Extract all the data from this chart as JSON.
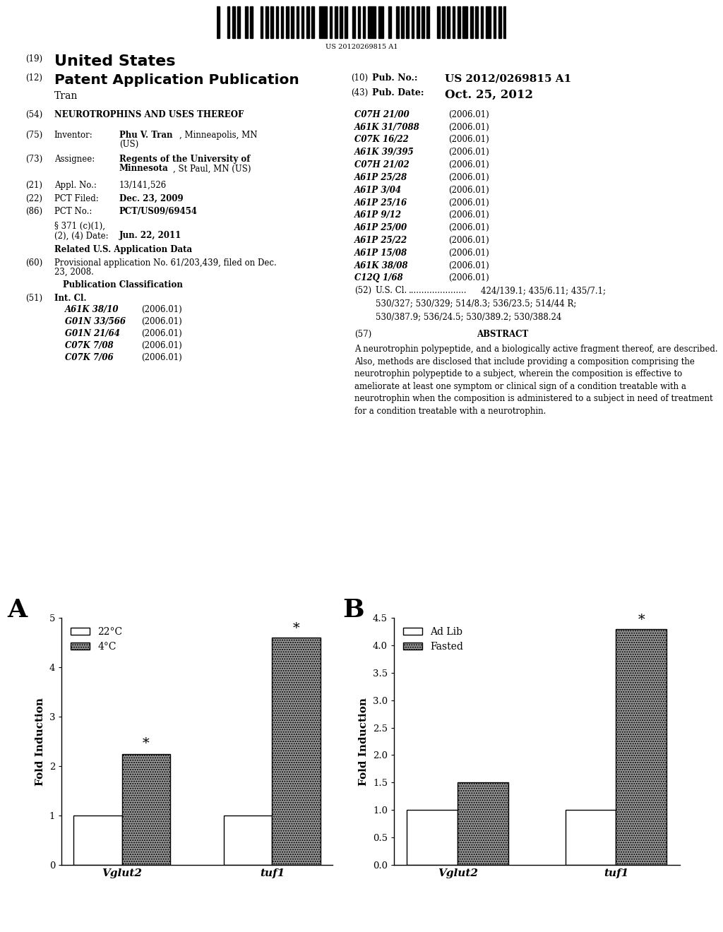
{
  "chart_A": {
    "title_label": "A",
    "categories": [
      "Vglut2",
      "tuf1"
    ],
    "series1_label": "22°C",
    "series2_label": "4°C",
    "series1_values": [
      1.0,
      1.0
    ],
    "series2_values": [
      2.25,
      4.6
    ],
    "series1_color": "#ffffff",
    "series2_color": "#999999",
    "series1_hatch": "",
    "series2_hatch": ".....",
    "ylabel": "Fold Induction",
    "ylim": [
      0,
      5
    ],
    "yticks": [
      0,
      1,
      2,
      3,
      4,
      5
    ],
    "ytick_labels": [
      "0",
      "1",
      "2",
      "3",
      "4",
      "5"
    ],
    "star_vglut2": true,
    "star_tuf1": true
  },
  "chart_B": {
    "title_label": "B",
    "categories": [
      "Vglut2",
      "tuf1"
    ],
    "series1_label": "Ad Lib",
    "series2_label": "Fasted",
    "series1_values": [
      1.0,
      1.0
    ],
    "series2_values": [
      1.5,
      4.3
    ],
    "series1_color": "#ffffff",
    "series2_color": "#999999",
    "series1_hatch": "",
    "series2_hatch": ".....",
    "ylabel": "Fold Induction",
    "ylim": [
      0.0,
      4.5
    ],
    "yticks": [
      0.0,
      0.5,
      1.0,
      1.5,
      2.0,
      2.5,
      3.0,
      3.5,
      4.0,
      4.5
    ],
    "ytick_labels": [
      "0.0",
      "0.5",
      "1.0",
      "1.5",
      "2.0",
      "2.5",
      "3.0",
      "3.5",
      "4.0",
      "4.5"
    ],
    "star_vglut2": false,
    "star_tuf1": true
  },
  "background_color": "#ffffff",
  "bar_width": 0.32,
  "bar_edge_color": "#000000",
  "header": {
    "barcode_text": "US 20120269815 A1",
    "pub_number": "US 2012/0269815 A1",
    "pub_date": "Oct. 25, 2012",
    "title_19": "United States",
    "title_12": "Patent Application Publication",
    "author": "Tran"
  },
  "left_col": {
    "items": [
      {
        "num": "(54)",
        "label": "",
        "value": "NEUROTROPHINS AND USES THEREOF",
        "bold_value": true
      },
      {
        "num": "(75)",
        "label": "Inventor:",
        "value": "Phu V. Tran, Minneapolis, MN\n(US)",
        "bold_value": false
      },
      {
        "num": "(73)",
        "label": "Assignee:",
        "value": "Regents of the University of\nMinnesota, St Paul, MN (US)",
        "bold_value": true
      },
      {
        "num": "(21)",
        "label": "Appl. No.:",
        "value": "13/141,526",
        "bold_value": false
      },
      {
        "num": "(22)",
        "label": "PCT Filed:",
        "value": "Dec. 23, 2009",
        "bold_value": true
      },
      {
        "num": "(86)",
        "label": "PCT No.:",
        "value": "PCT/US09/69454",
        "bold_value": true
      }
    ]
  },
  "int_cl_right": [
    [
      "C07H 21/00",
      "(2006.01)"
    ],
    [
      "A61K 31/7088",
      "(2006.01)"
    ],
    [
      "C07K 16/22",
      "(2006.01)"
    ],
    [
      "A61K 39/395",
      "(2006.01)"
    ],
    [
      "C07H 21/02",
      "(2006.01)"
    ],
    [
      "A61P 25/28",
      "(2006.01)"
    ],
    [
      "A61P 3/04",
      "(2006.01)"
    ],
    [
      "A61P 25/16",
      "(2006.01)"
    ],
    [
      "A61P 9/12",
      "(2006.01)"
    ],
    [
      "A61P 25/00",
      "(2006.01)"
    ],
    [
      "A61P 25/22",
      "(2006.01)"
    ],
    [
      "A61P 15/08",
      "(2006.01)"
    ],
    [
      "A61K 38/08",
      "(2006.01)"
    ],
    [
      "C12Q 1/68",
      "(2006.01)"
    ]
  ],
  "int_cl_left": [
    [
      "A61K 38/10",
      "(2006.01)"
    ],
    [
      "G01N 33/566",
      "(2006.01)"
    ],
    [
      "G01N 21/64",
      "(2006.01)"
    ],
    [
      "C07K 7/08",
      "(2006.01)"
    ],
    [
      "C07K 7/06",
      "(2006.01)"
    ]
  ],
  "us_cl": "424/139.1; 435/6.11; 435/7.1;\n530/327; 530/329; 514/8.3; 536/23.5; 514/44 R;\n530/387.9; 536/24.5; 530/389.2; 530/388.24",
  "abstract": "A neurotrophin polypeptide, and a biologically active fragment thereof, are described. Also, methods are disclosed that include providing a composition comprising the neurotrophin polypeptide to a subject, wherein the composition is effective to ameliorate at least one symptom or clinical sign of a condition treatable with a neurotrophin when the composition is administered to a subject in need of treatment for a condition treatable with a neurotrophin."
}
